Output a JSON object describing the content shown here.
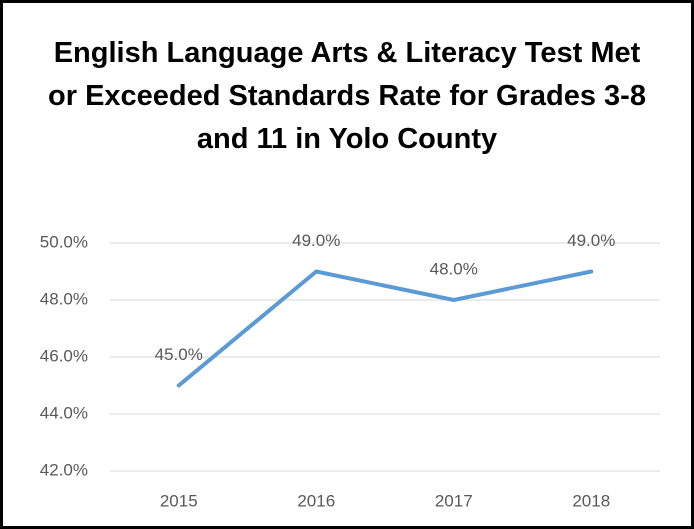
{
  "chart_data": {
    "type": "line",
    "title": "English Language Arts & Literacy Test Met or Exceeded Standards Rate for Grades 3-8 and 11 in Yolo County",
    "categories": [
      "2015",
      "2016",
      "2017",
      "2018"
    ],
    "values": [
      45,
      49,
      48,
      49
    ],
    "value_labels": [
      "45.0%",
      "49.0%",
      "48.0%",
      "49.0%"
    ],
    "color": "#5b9bd5",
    "ylim": [
      42,
      50
    ],
    "yticks": [
      {
        "value": 42,
        "label": "42.0%"
      },
      {
        "value": 44,
        "label": "44.0%"
      },
      {
        "value": 46,
        "label": "46.0%"
      },
      {
        "value": 48,
        "label": "48.0%"
      },
      {
        "value": 50,
        "label": "50.0%"
      }
    ],
    "grid": true
  }
}
